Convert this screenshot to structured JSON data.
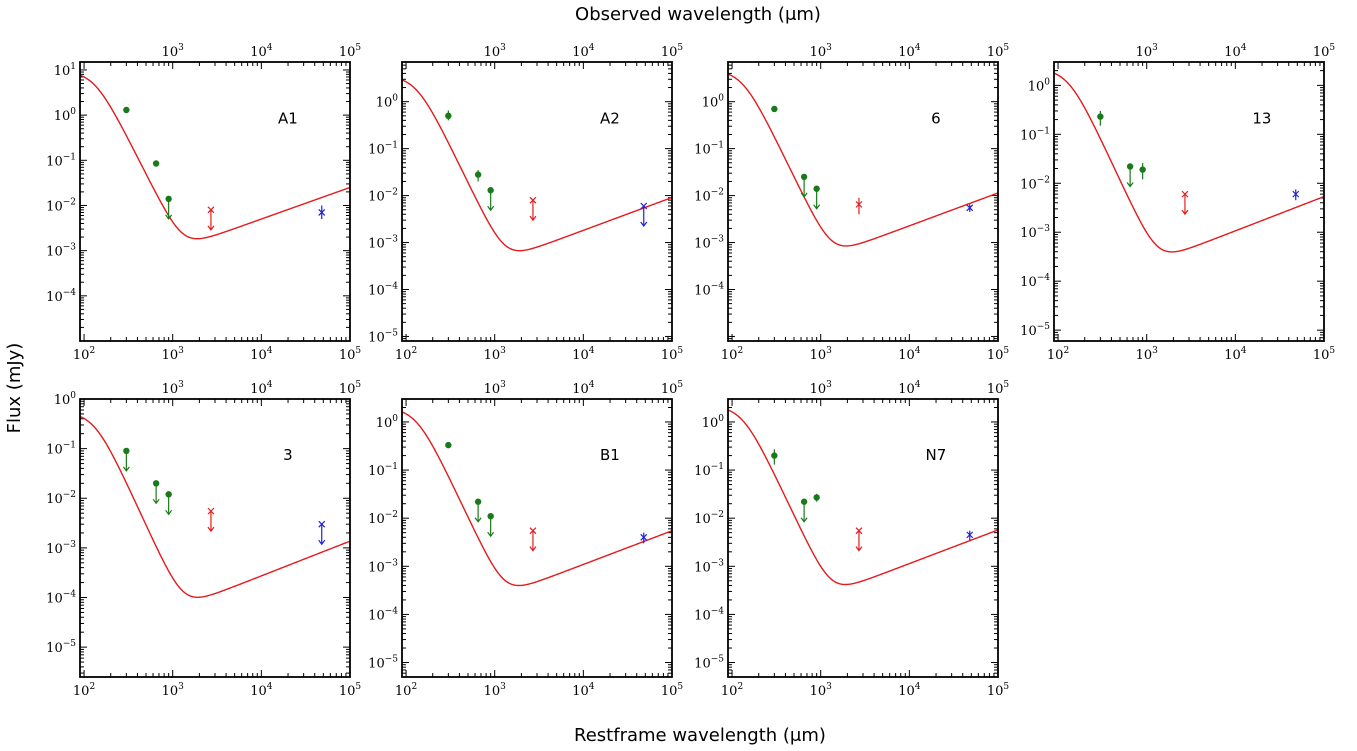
{
  "figure": {
    "top_label": "Observed wavelength (μm)",
    "bottom_label": "Restframe wavelength (μm)",
    "left_label": "Flux (mJy)"
  },
  "colors": {
    "model": "#e41a1c",
    "submm": "#1a7a1a",
    "radio_mid": "#e41a1c",
    "radio_low": "#1f1fdd",
    "axis": "#000000"
  },
  "x_axis": {
    "scale": "log",
    "range": [
      90,
      100000
    ],
    "ticks": [
      100,
      1000,
      10000,
      100000
    ],
    "tick_labels": [
      "10^2",
      "10^3",
      "10^4",
      "10^5"
    ],
    "top_ticks": [
      1000,
      10000,
      100000
    ],
    "top_tick_labels": [
      "10^3",
      "10^4",
      "10^5"
    ]
  },
  "chart_data": [
    {
      "type": "scatter",
      "label": "A1",
      "yscale": "log",
      "ylim": [
        1e-05,
        15
      ],
      "y_ticks": [
        0.0001,
        0.001,
        0.01,
        0.1,
        1,
        10
      ],
      "y_tick_labels": [
        "10^-4",
        "10^-3",
        "10^-2",
        "10^-1",
        "10^0",
        "10^1"
      ],
      "model": {
        "peak": 9.5,
        "min": 0.0022
      },
      "points": [
        {
          "x": 300,
          "y": 1.3,
          "kind": "dot",
          "color": "submm"
        },
        {
          "x": 650,
          "y": 0.085,
          "kind": "dot",
          "color": "submm"
        },
        {
          "x": 900,
          "y": 0.014,
          "kind": "dot",
          "color": "submm",
          "upper": true
        },
        {
          "x": 2700,
          "y": 0.008,
          "kind": "cross",
          "color": "radio_mid",
          "upper": true
        },
        {
          "x": 48000,
          "y": 0.007,
          "kind": "cross",
          "color": "radio_low",
          "err": [
            0.005,
            0.01
          ]
        }
      ]
    },
    {
      "type": "scatter",
      "label": "A2",
      "yscale": "log",
      "ylim": [
        8e-06,
        7
      ],
      "y_ticks": [
        1e-05,
        0.0001,
        0.001,
        0.01,
        0.1,
        1
      ],
      "y_tick_labels": [
        "10^-5",
        "10^-4",
        "10^-3",
        "10^-2",
        "10^-1",
        "10^0"
      ],
      "model": {
        "peak": 3.6,
        "min": 0.0008
      },
      "points": [
        {
          "x": 300,
          "y": 0.5,
          "kind": "dot",
          "color": "submm",
          "err": [
            0.4,
            0.65
          ]
        },
        {
          "x": 650,
          "y": 0.028,
          "kind": "dot",
          "color": "submm",
          "err": [
            0.02,
            0.035
          ]
        },
        {
          "x": 900,
          "y": 0.013,
          "kind": "dot",
          "color": "submm",
          "upper": true
        },
        {
          "x": 2700,
          "y": 0.008,
          "kind": "cross",
          "color": "radio_mid",
          "upper": true
        },
        {
          "x": 48000,
          "y": 0.006,
          "kind": "cross",
          "color": "radio_low",
          "upper": true
        }
      ]
    },
    {
      "type": "scatter",
      "label": "6",
      "yscale": "log",
      "ylim": [
        8e-06,
        7
      ],
      "y_ticks": [
        0.0001,
        0.001,
        0.01,
        0.1,
        1
      ],
      "y_tick_labels": [
        "10^-4",
        "10^-3",
        "10^-2",
        "10^-1",
        "10^0"
      ],
      "model": {
        "peak": 4.8,
        "min": 0.001
      },
      "points": [
        {
          "x": 300,
          "y": 0.7,
          "kind": "dot",
          "color": "submm"
        },
        {
          "x": 650,
          "y": 0.025,
          "kind": "dot",
          "color": "submm",
          "upper": true
        },
        {
          "x": 900,
          "y": 0.014,
          "kind": "dot",
          "color": "submm",
          "upper": true
        },
        {
          "x": 2700,
          "y": 0.0065,
          "kind": "cross",
          "color": "radio_mid",
          "err": [
            0.004,
            0.009
          ]
        },
        {
          "x": 48000,
          "y": 0.0055,
          "kind": "cross",
          "color": "radio_low",
          "err": [
            0.0045,
            0.0065
          ]
        }
      ]
    },
    {
      "type": "scatter",
      "label": "13",
      "yscale": "log",
      "ylim": [
        6e-06,
        3
      ],
      "y_ticks": [
        1e-05,
        0.0001,
        0.001,
        0.01,
        0.1,
        1
      ],
      "y_tick_labels": [
        "10^-5",
        "10^-4",
        "10^-3",
        "10^-2",
        "10^-1",
        "10^0"
      ],
      "model": {
        "peak": 2.2,
        "min": 0.00047
      },
      "points": [
        {
          "x": 300,
          "y": 0.23,
          "kind": "dot",
          "color": "submm",
          "err": [
            0.15,
            0.3
          ]
        },
        {
          "x": 650,
          "y": 0.022,
          "kind": "dot",
          "color": "submm",
          "upper": true
        },
        {
          "x": 900,
          "y": 0.019,
          "kind": "dot",
          "color": "submm",
          "err": [
            0.012,
            0.026
          ]
        },
        {
          "x": 2700,
          "y": 0.006,
          "kind": "cross",
          "color": "radio_mid",
          "upper": true
        },
        {
          "x": 48000,
          "y": 0.006,
          "kind": "cross",
          "color": "radio_low",
          "err": [
            0.0045,
            0.0075
          ]
        }
      ]
    },
    {
      "type": "scatter",
      "label": "3",
      "yscale": "log",
      "ylim": [
        2.5e-06,
        1
      ],
      "y_ticks": [
        1e-05,
        0.0001,
        0.001,
        0.01,
        0.1,
        1
      ],
      "y_tick_labels": [
        "10^-5",
        "10^-4",
        "10^-3",
        "10^-2",
        "10^-1",
        "10^0"
      ],
      "model": {
        "peak": 0.55,
        "min": 0.00012
      },
      "points": [
        {
          "x": 300,
          "y": 0.09,
          "kind": "dot",
          "color": "submm",
          "upper": true
        },
        {
          "x": 650,
          "y": 0.02,
          "kind": "dot",
          "color": "submm",
          "upper": true
        },
        {
          "x": 900,
          "y": 0.012,
          "kind": "dot",
          "color": "submm",
          "upper": true
        },
        {
          "x": 2700,
          "y": 0.0055,
          "kind": "cross",
          "color": "radio_mid",
          "upper": true
        },
        {
          "x": 48000,
          "y": 0.003,
          "kind": "cross",
          "color": "radio_low",
          "upper": true
        }
      ]
    },
    {
      "type": "scatter",
      "label": "B1",
      "yscale": "log",
      "ylim": [
        5e-06,
        3
      ],
      "y_ticks": [
        1e-05,
        0.0001,
        0.001,
        0.01,
        0.1,
        1
      ],
      "y_tick_labels": [
        "10^-5",
        "10^-4",
        "10^-3",
        "10^-2",
        "10^-1",
        "10^0"
      ],
      "model": {
        "peak": 2.0,
        "min": 0.00048
      },
      "points": [
        {
          "x": 300,
          "y": 0.33,
          "kind": "dot",
          "color": "submm"
        },
        {
          "x": 650,
          "y": 0.022,
          "kind": "dot",
          "color": "submm",
          "upper": true
        },
        {
          "x": 900,
          "y": 0.011,
          "kind": "dot",
          "color": "submm",
          "upper": true
        },
        {
          "x": 2700,
          "y": 0.0055,
          "kind": "cross",
          "color": "radio_mid",
          "upper": true
        },
        {
          "x": 48000,
          "y": 0.004,
          "kind": "cross",
          "color": "radio_low",
          "err": [
            0.003,
            0.005
          ]
        }
      ]
    },
    {
      "type": "scatter",
      "label": "N7",
      "yscale": "log",
      "ylim": [
        5e-06,
        3
      ],
      "y_ticks": [
        1e-05,
        0.0001,
        0.001,
        0.01,
        0.1,
        1
      ],
      "y_tick_labels": [
        "10^-5",
        "10^-4",
        "10^-3",
        "10^-2",
        "10^-1",
        "10^0"
      ],
      "model": {
        "peak": 2.2,
        "min": 0.0005
      },
      "points": [
        {
          "x": 300,
          "y": 0.2,
          "kind": "dot",
          "color": "submm",
          "err": [
            0.13,
            0.27
          ]
        },
        {
          "x": 650,
          "y": 0.022,
          "kind": "dot",
          "color": "submm",
          "upper": true
        },
        {
          "x": 900,
          "y": 0.027,
          "kind": "dot",
          "color": "submm",
          "err": [
            0.022,
            0.032
          ]
        },
        {
          "x": 2700,
          "y": 0.0055,
          "kind": "cross",
          "color": "radio_mid",
          "upper": true
        },
        {
          "x": 48000,
          "y": 0.0045,
          "kind": "cross",
          "color": "radio_low",
          "err": [
            0.0035,
            0.0055
          ]
        }
      ]
    }
  ]
}
